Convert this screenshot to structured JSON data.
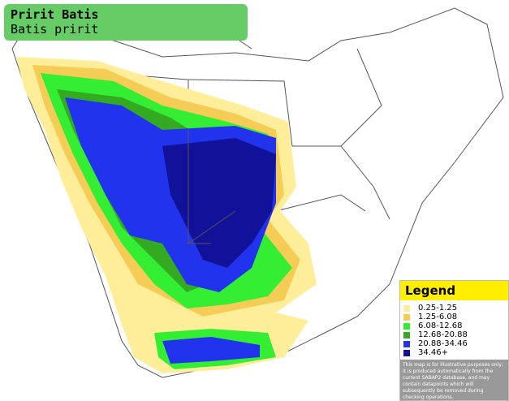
{
  "header": {
    "title": "Pririt Batis",
    "subtitle": "Batis pririt"
  },
  "legend": {
    "title": "Legend",
    "items": [
      {
        "label": "0.25-1.25",
        "color": "#ffee99"
      },
      {
        "label": "1.25-6.08",
        "color": "#f5cc55"
      },
      {
        "label": "6.08-12.68",
        "color": "#33ee33"
      },
      {
        "label": "12.68-20.88",
        "color": "#33aa22"
      },
      {
        "label": "20.88-34.46",
        "color": "#2233ee"
      },
      {
        "label": "34.46+",
        "color": "#111199"
      }
    ],
    "note": "This map is for illustrative purposes only; it is produced automatically from the current SABAP2 database, and may contain datapoints which will subsequently be removed during checking operations."
  }
}
